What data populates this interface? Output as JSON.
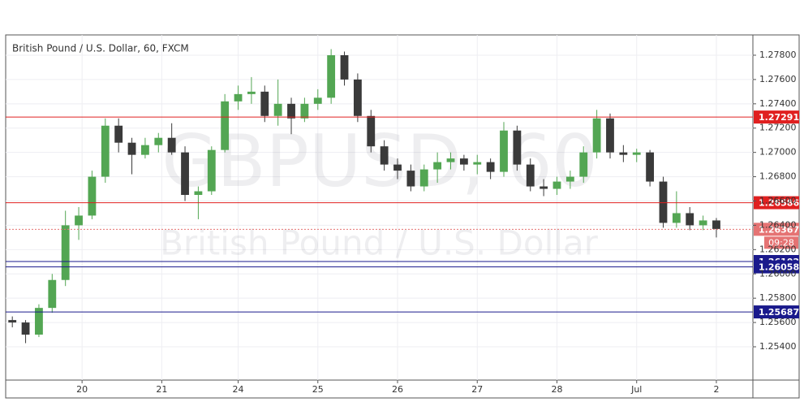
{
  "chart_data": {
    "type": "candlestick",
    "title": "British Pound / U.S. Dollar, 60, FXCM",
    "watermark": "GBPUSD, 60",
    "watermark_subtitle": "British Pound / U.S. Dollar",
    "x": [
      2,
      6,
      10,
      14,
      18,
      22,
      26,
      30,
      34,
      38,
      42,
      46,
      50,
      54,
      58,
      62,
      66,
      70,
      74,
      78,
      82,
      86,
      90,
      94,
      98,
      102,
      106,
      110,
      114,
      118,
      122,
      126,
      130,
      134,
      138,
      142,
      146,
      150,
      154,
      158,
      162,
      166,
      170,
      174,
      178,
      182,
      186,
      190,
      194,
      198,
      202,
      206,
      210,
      214
    ],
    "open": [
      1.2562,
      1.256,
      1.255,
      1.2572,
      1.2595,
      1.264,
      1.2648,
      1.268,
      1.2722,
      1.2708,
      1.2698,
      1.2706,
      1.2712,
      1.27,
      1.2665,
      1.2668,
      1.2702,
      1.2742,
      1.2748,
      1.275,
      1.273,
      1.274,
      1.2728,
      1.274,
      1.2745,
      1.278,
      1.276,
      1.273,
      1.2705,
      1.269,
      1.2685,
      1.2672,
      1.2686,
      1.2692,
      1.2695,
      1.269,
      1.2692,
      1.2684,
      1.2718,
      1.269,
      1.2672,
      1.267,
      1.2676,
      1.268,
      1.27,
      1.2728,
      1.27,
      1.2698,
      1.27,
      1.2676,
      1.2642,
      1.265,
      1.264,
      1.2644
    ],
    "high": [
      1.2565,
      1.2562,
      1.2575,
      1.26,
      1.2652,
      1.2655,
      1.2685,
      1.2728,
      1.2728,
      1.2712,
      1.2712,
      1.2716,
      1.2724,
      1.2705,
      1.2672,
      1.2705,
      1.2748,
      1.2755,
      1.2762,
      1.2755,
      1.276,
      1.2745,
      1.2745,
      1.2752,
      1.2785,
      1.2783,
      1.2765,
      1.2735,
      1.271,
      1.2695,
      1.269,
      1.269,
      1.27,
      1.27,
      1.2698,
      1.2698,
      1.2695,
      1.2725,
      1.2722,
      1.2695,
      1.2678,
      1.268,
      1.2685,
      1.2705,
      1.2735,
      1.2732,
      1.2706,
      1.2703,
      1.2702,
      1.268,
      1.2668,
      1.2655,
      1.2648,
      1.2646
    ],
    "low": [
      1.2556,
      1.2543,
      1.2548,
      1.2568,
      1.259,
      1.2628,
      1.2645,
      1.2675,
      1.27,
      1.2682,
      1.2695,
      1.27,
      1.2698,
      1.266,
      1.2645,
      1.2665,
      1.27,
      1.2735,
      1.274,
      1.2725,
      1.2722,
      1.2715,
      1.2725,
      1.2735,
      1.274,
      1.2755,
      1.2725,
      1.27,
      1.2685,
      1.2678,
      1.2668,
      1.2668,
      1.2675,
      1.2686,
      1.2685,
      1.2682,
      1.2678,
      1.268,
      1.2685,
      1.2668,
      1.2664,
      1.2665,
      1.267,
      1.2675,
      1.2695,
      1.2695,
      1.2692,
      1.2692,
      1.2672,
      1.2638,
      1.2638,
      1.2636,
      1.2636,
      1.263
    ],
    "close": [
      1.256,
      1.255,
      1.2572,
      1.2595,
      1.264,
      1.2648,
      1.268,
      1.2722,
      1.2708,
      1.2698,
      1.2706,
      1.2712,
      1.27,
      1.2665,
      1.2668,
      1.2702,
      1.2742,
      1.2748,
      1.275,
      1.273,
      1.274,
      1.2728,
      1.274,
      1.2745,
      1.278,
      1.276,
      1.273,
      1.2705,
      1.269,
      1.2685,
      1.2672,
      1.2686,
      1.2692,
      1.2695,
      1.269,
      1.2692,
      1.2684,
      1.2718,
      1.269,
      1.2672,
      1.267,
      1.2676,
      1.268,
      1.27,
      1.2728,
      1.27,
      1.2698,
      1.27,
      1.2676,
      1.2642,
      1.265,
      1.264,
      1.2644,
      1.2637
    ],
    "up_color": "#53a653",
    "down_color": "#3a3a3a",
    "xlim": [
      0,
      225
    ],
    "xticks": [
      {
        "value": 23,
        "label": "20"
      },
      {
        "value": 47,
        "label": "21"
      },
      {
        "value": 70,
        "label": "24"
      },
      {
        "value": 94,
        "label": "25"
      },
      {
        "value": 118,
        "label": "26"
      },
      {
        "value": 142,
        "label": "27"
      },
      {
        "value": 166,
        "label": "28"
      },
      {
        "value": 190,
        "label": "Jul"
      },
      {
        "value": 214,
        "label": "2"
      }
    ],
    "ylim": [
      1.25126,
      1.27967
    ],
    "yticks": [
      {
        "value": 1.254,
        "label": "1.25400"
      },
      {
        "value": 1.256,
        "label": "1.25600"
      },
      {
        "value": 1.258,
        "label": "1.25800"
      },
      {
        "value": 1.26,
        "label": "1.26000"
      },
      {
        "value": 1.262,
        "label": "1.26200"
      },
      {
        "value": 1.264,
        "label": "1.26400"
      },
      {
        "value": 1.266,
        "label": "1.26600"
      },
      {
        "value": 1.268,
        "label": "1.26800"
      },
      {
        "value": 1.27,
        "label": "1.27000"
      },
      {
        "value": 1.272,
        "label": "1.27200"
      },
      {
        "value": 1.274,
        "label": "1.27400"
      },
      {
        "value": 1.276,
        "label": "1.27600"
      },
      {
        "value": 1.278,
        "label": "1.27800"
      }
    ],
    "grid": true,
    "levels": [
      {
        "value": 1.27291,
        "color": "#e02020"
      },
      {
        "value": 1.26586,
        "color": "#e02020"
      },
      {
        "value": 1.26102,
        "color": "#1a1a8c"
      },
      {
        "value": 1.26058,
        "color": "#1a1a8c"
      },
      {
        "value": 1.25687,
        "color": "#1a1a8c"
      }
    ],
    "last_price": {
      "value": 1.26367,
      "color": "#e57373",
      "countdown": "09:28"
    }
  }
}
